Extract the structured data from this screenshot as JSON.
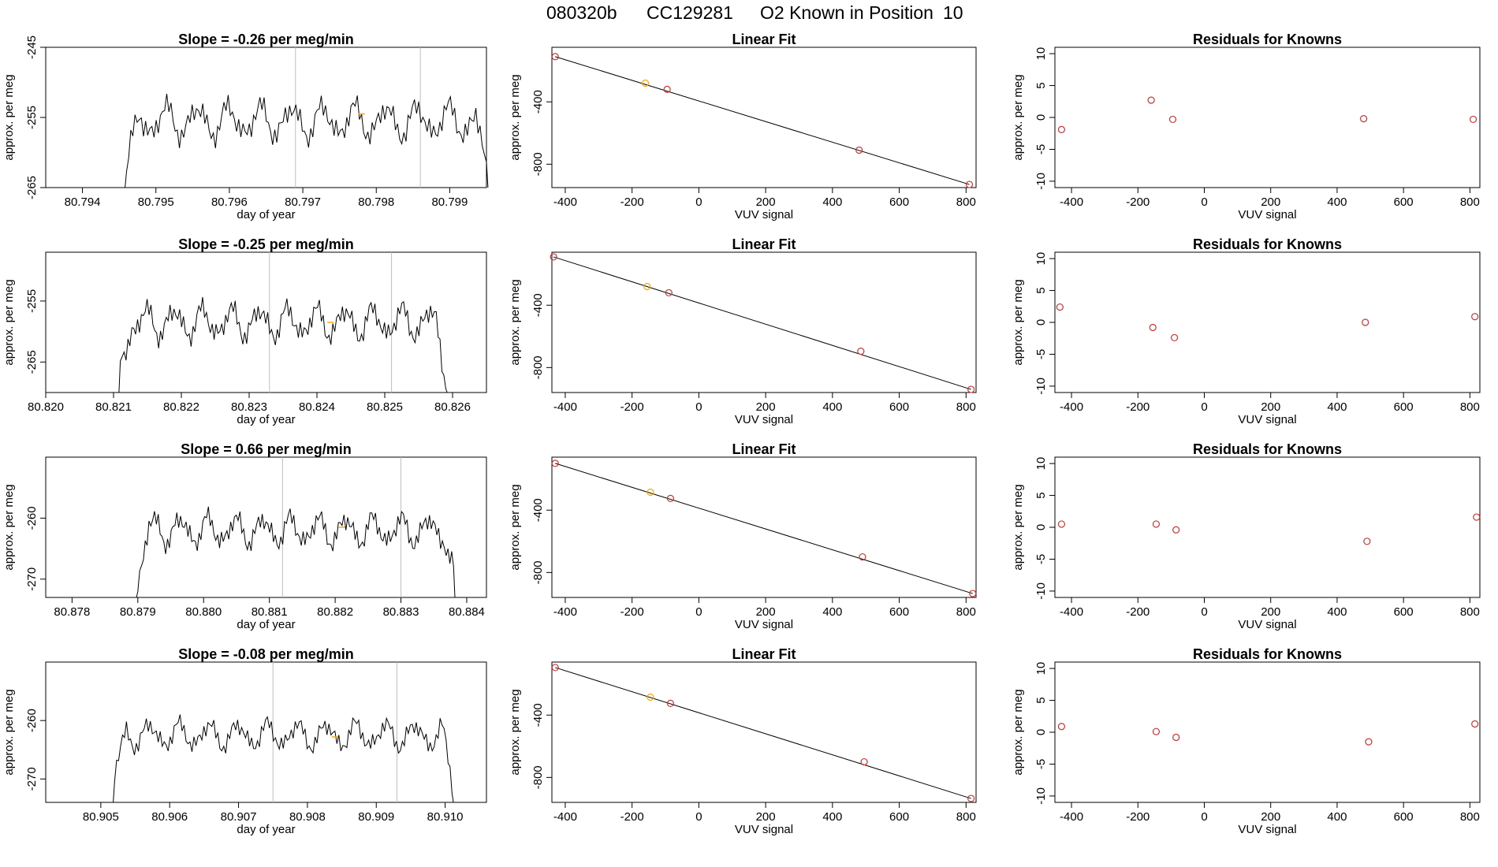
{
  "figure": {
    "suptitle_parts": [
      "080320b",
      "CC129281",
      "O2 Known in Position",
      "10"
    ]
  },
  "colors": {
    "trace": "#000000",
    "guide": "#bebebe",
    "point": "#cd3333",
    "highlight": "#ffa500",
    "axis": "#000000"
  },
  "chart_data": [
    {
      "type": "line",
      "panel": "time-series-1",
      "title": "Slope =  -0.26  per meg/min",
      "xlabel": "day of year",
      "ylabel": "approx. per meg",
      "xlim": [
        80.7935,
        80.7995
      ],
      "ylim": [
        -265,
        -245
      ],
      "xticks": [
        "80.794",
        "80.795",
        "80.796",
        "80.797",
        "80.798",
        "80.799"
      ],
      "yticks": [
        "-265",
        "-255",
        "-245"
      ],
      "start": 80.7946,
      "end": 80.7995,
      "mean": -255.5,
      "amp": 2.6,
      "guides": [
        80.7969,
        80.7986
      ],
      "marker": {
        "x": 80.7978,
        "y": -254.5
      }
    },
    {
      "type": "scatter",
      "panel": "linear-fit-1",
      "title": "Linear Fit",
      "xlabel": "VUV signal",
      "ylabel": "approx. per meg",
      "xlim": [
        -440,
        830
      ],
      "ylim": [
        -950,
        -50
      ],
      "xticks": [
        "-400",
        "-200",
        "0",
        "200",
        "400",
        "600",
        "800"
      ],
      "yticks": [
        "-800",
        "-400"
      ],
      "points": [
        [
          -430,
          -110
        ],
        [
          -160,
          -280
        ],
        [
          -95,
          -320
        ],
        [
          480,
          -710
        ],
        [
          810,
          -930
        ]
      ],
      "highlight_index": 1,
      "fit": [
        [
          -430,
          -110
        ],
        [
          810,
          -930
        ]
      ]
    },
    {
      "type": "scatter",
      "panel": "residuals-1",
      "title": "Residuals for Knowns",
      "xlabel": "VUV signal",
      "ylabel": "approx. per meg",
      "xlim": [
        -450,
        830
      ],
      "ylim": [
        -11,
        11
      ],
      "xticks": [
        "-400",
        "-200",
        "0",
        "200",
        "400",
        "600",
        "800"
      ],
      "yticks": [
        "-10",
        "-5",
        "0",
        "5",
        "10"
      ],
      "points": [
        [
          -430,
          -1.9
        ],
        [
          -160,
          2.7
        ],
        [
          -95,
          -0.3
        ],
        [
          480,
          -0.2
        ],
        [
          810,
          -0.3
        ]
      ]
    },
    {
      "type": "line",
      "panel": "time-series-2",
      "title": "Slope =  -0.25  per meg/min",
      "xlabel": "day of year",
      "ylabel": "approx. per meg",
      "xlim": [
        80.82,
        80.8265
      ],
      "ylim": [
        -270,
        -247
      ],
      "xticks": [
        "80.820",
        "80.821",
        "80.822",
        "80.823",
        "80.824",
        "80.825",
        "80.826"
      ],
      "yticks": [
        "-265",
        "-255"
      ],
      "start": 80.8211,
      "end": 80.8259,
      "mean": -258.5,
      "amp": 2.8,
      "guides": [
        80.8233,
        80.8251
      ],
      "marker": {
        "x": 80.8242,
        "y": -258.5
      }
    },
    {
      "type": "scatter",
      "panel": "linear-fit-2",
      "title": "Linear Fit",
      "xlabel": "VUV signal",
      "ylabel": "approx. per meg",
      "xlim": [
        -440,
        830
      ],
      "ylim": [
        -960,
        -60
      ],
      "xticks": [
        "-400",
        "-200",
        "0",
        "200",
        "400",
        "600",
        "800"
      ],
      "yticks": [
        "-800",
        "-400"
      ],
      "points": [
        [
          -435,
          -90
        ],
        [
          -155,
          -280
        ],
        [
          -90,
          -320
        ],
        [
          485,
          -695
        ],
        [
          815,
          -940
        ]
      ],
      "highlight_index": 1,
      "fit": [
        [
          -435,
          -90
        ],
        [
          815,
          -940
        ]
      ]
    },
    {
      "type": "scatter",
      "panel": "residuals-2",
      "title": "Residuals for Knowns",
      "xlabel": "VUV signal",
      "ylabel": "approx. per meg",
      "xlim": [
        -450,
        830
      ],
      "ylim": [
        -11,
        11
      ],
      "xticks": [
        "-400",
        "-200",
        "0",
        "200",
        "400",
        "600",
        "800"
      ],
      "yticks": [
        "-10",
        "-5",
        "0",
        "5",
        "10"
      ],
      "points": [
        [
          -435,
          2.4
        ],
        [
          -155,
          -0.8
        ],
        [
          -90,
          -2.4
        ],
        [
          485,
          0
        ],
        [
          815,
          0.9
        ]
      ]
    },
    {
      "type": "line",
      "panel": "time-series-3",
      "title": "Slope =  0.66  per meg/min",
      "xlabel": "day of year",
      "ylabel": "approx. per meg",
      "xlim": [
        80.8776,
        80.8843
      ],
      "ylim": [
        -273,
        -250
      ],
      "xticks": [
        "80.878",
        "80.879",
        "80.880",
        "80.881",
        "80.882",
        "80.883",
        "80.884"
      ],
      "yticks": [
        "-270",
        "-260"
      ],
      "start": 80.879,
      "end": 80.8838,
      "mean": -262.0,
      "amp": 2.6,
      "guides": [
        80.8812,
        80.883
      ],
      "marker": {
        "x": 80.8821,
        "y": -261.5
      }
    },
    {
      "type": "scatter",
      "panel": "linear-fit-3",
      "title": "Linear Fit",
      "xlabel": "VUV signal",
      "ylabel": "approx. per meg",
      "xlim": [
        -440,
        830
      ],
      "ylim": [
        -960,
        -60
      ],
      "xticks": [
        "-400",
        "-200",
        "0",
        "200",
        "400",
        "600",
        "800"
      ],
      "yticks": [
        "-800",
        "-400"
      ],
      "points": [
        [
          -430,
          -100
        ],
        [
          -145,
          -285
        ],
        [
          -85,
          -325
        ],
        [
          490,
          -700
        ],
        [
          820,
          -935
        ]
      ],
      "highlight_index": 1,
      "fit": [
        [
          -430,
          -100
        ],
        [
          820,
          -935
        ]
      ]
    },
    {
      "type": "scatter",
      "panel": "residuals-3",
      "title": "Residuals for Knowns",
      "xlabel": "VUV signal",
      "ylabel": "approx. per meg",
      "xlim": [
        -450,
        830
      ],
      "ylim": [
        -11,
        11
      ],
      "xticks": [
        "-400",
        "-200",
        "0",
        "200",
        "400",
        "600",
        "800"
      ],
      "yticks": [
        "-10",
        "-5",
        "0",
        "5",
        "10"
      ],
      "points": [
        [
          -430,
          0.5
        ],
        [
          -145,
          0.5
        ],
        [
          -85,
          -0.4
        ],
        [
          490,
          -2.2
        ],
        [
          820,
          1.6
        ]
      ]
    },
    {
      "type": "line",
      "panel": "time-series-4",
      "title": "Slope =  -0.08  per meg/min",
      "xlabel": "day of year",
      "ylabel": "approx. per meg",
      "xlim": [
        80.9042,
        80.9106
      ],
      "ylim": [
        -274,
        -250
      ],
      "xticks": [
        "80.905",
        "80.906",
        "80.907",
        "80.908",
        "80.909",
        "80.910"
      ],
      "yticks": [
        "-270",
        "-260"
      ],
      "start": 80.9052,
      "end": 80.9101,
      "mean": -262.5,
      "amp": 2.4,
      "guides": [
        80.9075,
        80.9093
      ],
      "marker": {
        "x": 80.9084,
        "y": -262.8
      }
    },
    {
      "type": "scatter",
      "panel": "linear-fit-4",
      "title": "Linear Fit",
      "xlabel": "VUV signal",
      "ylabel": "approx. per meg",
      "xlim": [
        -440,
        830
      ],
      "ylim": [
        -960,
        -60
      ],
      "xticks": [
        "-400",
        "-200",
        "0",
        "200",
        "400",
        "600",
        "800"
      ],
      "yticks": [
        "-800",
        "-400"
      ],
      "points": [
        [
          -430,
          -95
        ],
        [
          -145,
          -285
        ],
        [
          -85,
          -325
        ],
        [
          495,
          -700
        ],
        [
          815,
          -935
        ]
      ],
      "highlight_index": 1,
      "fit": [
        [
          -430,
          -95
        ],
        [
          815,
          -935
        ]
      ]
    },
    {
      "type": "scatter",
      "panel": "residuals-4",
      "title": "Residuals for Knowns",
      "xlabel": "VUV signal",
      "ylabel": "approx. per meg",
      "xlim": [
        -450,
        830
      ],
      "ylim": [
        -11,
        11
      ],
      "xticks": [
        "-400",
        "-200",
        "0",
        "200",
        "400",
        "600",
        "800"
      ],
      "yticks": [
        "-10",
        "-5",
        "0",
        "5",
        "10"
      ],
      "points": [
        [
          -430,
          0.9
        ],
        [
          -145,
          0.1
        ],
        [
          -85,
          -0.8
        ],
        [
          495,
          -1.5
        ],
        [
          815,
          1.3
        ]
      ]
    }
  ]
}
